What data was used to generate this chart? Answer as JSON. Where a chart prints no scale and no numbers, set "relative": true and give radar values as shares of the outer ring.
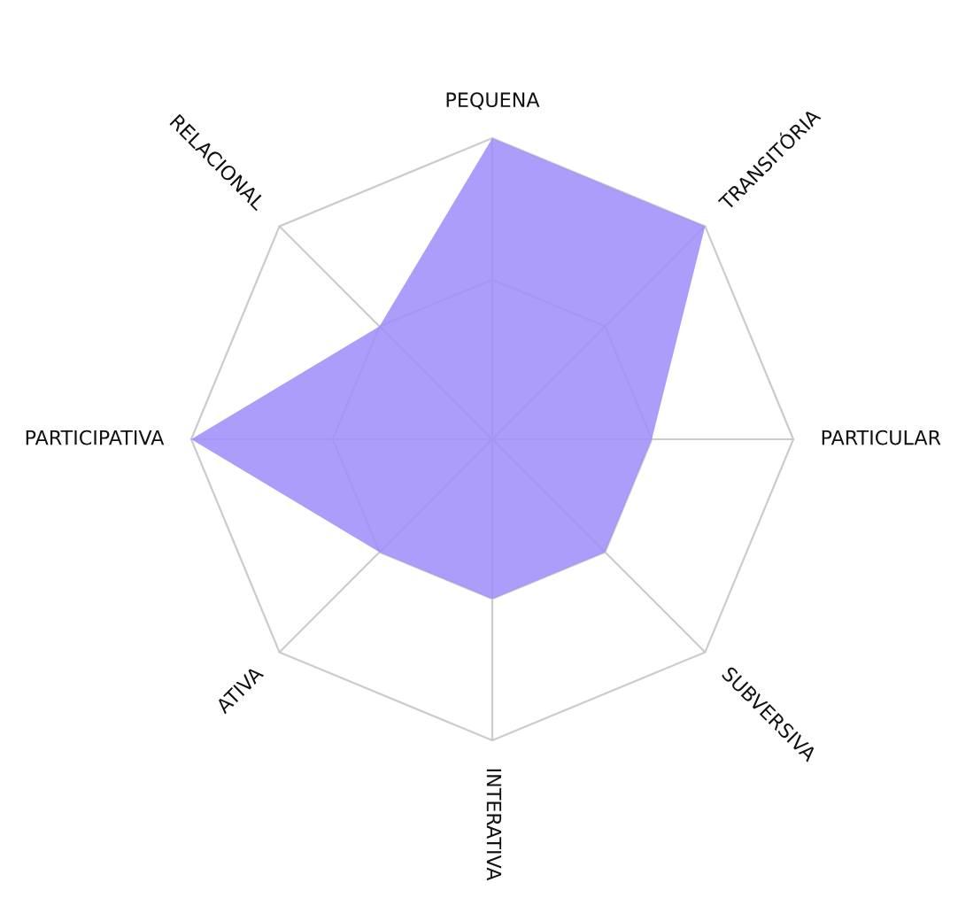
{
  "chart_data": {
    "type": "radar",
    "relative": true,
    "grid": true,
    "categories": [
      "PEQUENA",
      "TRANSITÓRIA",
      "PARTICULAR",
      "SUBVERSIVA",
      "INTERATIVA",
      "ATIVA",
      "PARTICIPATIVA",
      "RELACIONAL"
    ],
    "series": [
      {
        "color": "#9d8cfa",
        "values": [
          1.0,
          1.0,
          0.53,
          0.53,
          0.53,
          0.53,
          1.0,
          0.53
        ]
      }
    ]
  }
}
